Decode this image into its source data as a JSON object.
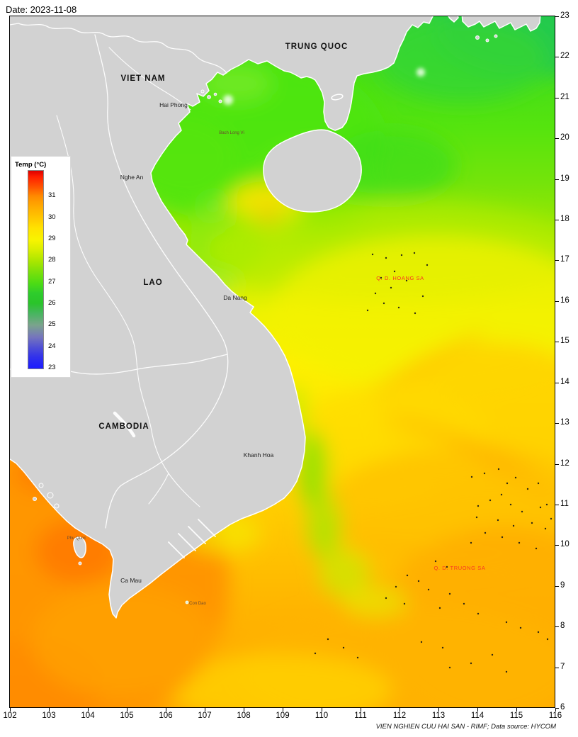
{
  "header": {
    "date_label": "Date: 2023-11-08"
  },
  "credit": "VIEN NGHIEN CUU HAI SAN - RIMF; Data source: HYCOM",
  "legend": {
    "title": "Temp (°C)",
    "tick_labels": [
      "31",
      "30",
      "29",
      "28",
      "27",
      "26",
      "25",
      "24",
      "23"
    ],
    "range_min": 23,
    "range_max": 32.2,
    "colors": {
      "hot_red": "#e00000",
      "orange_31": "#ff8c00",
      "yellow_29": "#f8f400",
      "green_27": "#3edd12",
      "teal_25": "#7aa48c",
      "blue_23": "#1c1cff"
    }
  },
  "axes": {
    "x_ticks": [
      "102",
      "103",
      "104",
      "105",
      "106",
      "107",
      "108",
      "109",
      "110",
      "111",
      "112",
      "113",
      "114",
      "115",
      "116"
    ],
    "y_ticks": [
      "23",
      "22",
      "21",
      "20",
      "19",
      "18",
      "17",
      "16",
      "15",
      "14",
      "13",
      "12",
      "11",
      "10",
      "9",
      "8",
      "7",
      "6"
    ]
  },
  "map_labels": {
    "countries": [
      {
        "text": "TRUNG QUOC"
      },
      {
        "text": "VIET NAM"
      },
      {
        "text": "LAO"
      },
      {
        "text": "CAMBODIA"
      }
    ],
    "places": [
      {
        "text": "Hai Phong"
      },
      {
        "text": "Nghe An"
      },
      {
        "text": "Da Nang"
      },
      {
        "text": "Khanh Hoa"
      },
      {
        "text": "Ca Mau"
      }
    ],
    "small_islands": [
      {
        "text": "Bach Long Vi"
      },
      {
        "text": "Phu Quoc"
      },
      {
        "text": "Con Dao"
      }
    ],
    "archipelagos": [
      {
        "text": "Q. D. HOANG SA"
      },
      {
        "text": "Q. D. TRUONG SA"
      }
    ]
  },
  "style_colors": {
    "land": "#d2d2d2",
    "coastline": "#ffffff",
    "archipelago_label": "#f93822",
    "small_island_label": "#6b4a2f",
    "sea_cool_green": "#4ee60e",
    "sea_warm_orange": "#ffa600"
  }
}
